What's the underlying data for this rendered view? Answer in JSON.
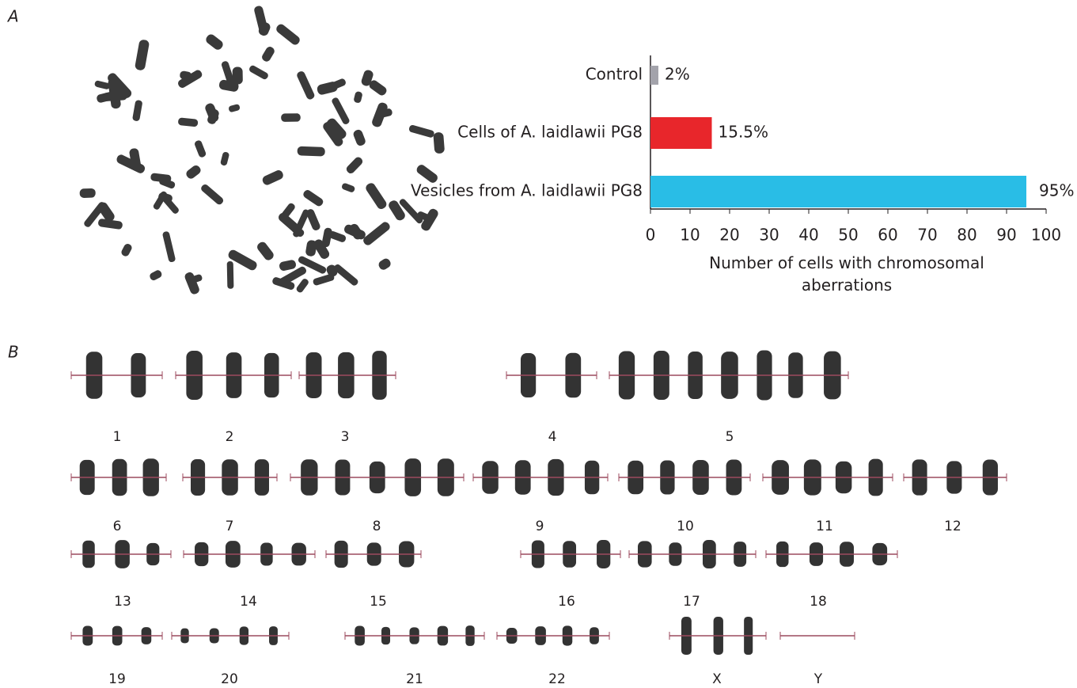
{
  "chart_data": {
    "type": "bar",
    "orientation": "horizontal",
    "panel_label": "A",
    "categories": [
      "Control",
      "Cells of A. laidlawii PG8",
      "Vesicles from A. laidlawii PG8"
    ],
    "values": [
      2,
      15.5,
      95
    ],
    "value_labels": [
      "2%",
      "15.5%",
      "95%"
    ],
    "colors": [
      "#a3a3ab",
      "#e8262b",
      "#29bde6"
    ],
    "xlim": [
      0,
      100
    ],
    "xticks": [
      0,
      10,
      20,
      30,
      40,
      50,
      60,
      70,
      80,
      90,
      100
    ],
    "xlabel": "Number of cells with chromosomal aberrations"
  },
  "karyotype": {
    "panel_label": "B",
    "labels": [
      "1",
      "2",
      "3",
      "4",
      "5",
      "6",
      "7",
      "8",
      "9",
      "10",
      "11",
      "12",
      "13",
      "14",
      "15",
      "16",
      "17",
      "18",
      "19",
      "20",
      "21",
      "22",
      "X",
      "Y"
    ]
  }
}
